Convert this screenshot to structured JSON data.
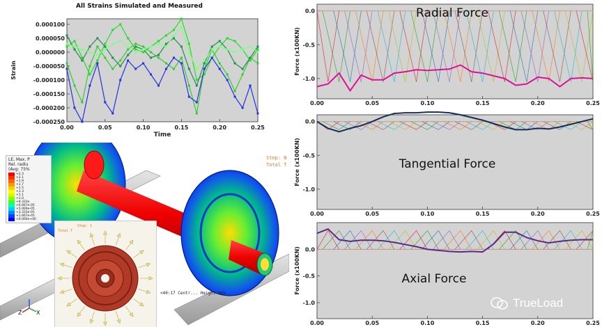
{
  "chart_data": [
    {
      "type": "line",
      "title": "All Strains Simulated and Measured",
      "xlabel": "Time",
      "ylabel": "Strain",
      "xlim": [
        0,
        0.25
      ],
      "ylim": [
        -0.00025,
        0.00012
      ],
      "xticks": [
        "0.00",
        "0.05",
        "0.10",
        "0.15",
        "0.20",
        "0.25"
      ],
      "yticks": [
        "0.000100",
        "0.000050",
        "0.000000",
        "-0.000050",
        "-0.000100",
        "-0.000150",
        "-0.000200",
        "-0.000250"
      ],
      "grid": false,
      "series": [
        {
          "color": "#22dd22",
          "x": [
            0,
            0.01,
            0.02,
            0.03,
            0.04,
            0.05,
            0.06,
            0.07,
            0.08,
            0.09,
            0.1,
            0.11,
            0.12,
            0.13,
            0.14,
            0.15,
            0.16,
            0.17,
            0.18,
            0.19,
            0.2,
            0.21,
            0.22,
            0.23,
            0.24,
            0.25
          ],
          "values": [
            2e-05,
            4e-05,
            -2e-05,
            -8e-05,
            -3e-05,
            3e-05,
            8e-05,
            0.0001,
            5e-05,
            1e-05,
            0.0,
            2e-05,
            4e-05,
            6e-05,
            8e-05,
            0.00012,
            3e-05,
            -0.0001,
            -8e-05,
            -2e-05,
            2e-05,
            5e-05,
            4e-05,
            1e-05,
            -3e-05,
            1e-05
          ]
        },
        {
          "color": "#33cc33",
          "x": [
            0,
            0.01,
            0.02,
            0.03,
            0.04,
            0.05,
            0.06,
            0.07,
            0.08,
            0.09,
            0.1,
            0.11,
            0.12,
            0.13,
            0.14,
            0.15,
            0.16,
            0.17,
            0.18,
            0.19,
            0.2,
            0.21,
            0.22,
            0.23,
            0.24,
            0.25
          ],
          "values": [
            -4e-05,
            -0.00012,
            -0.00018,
            -5e-05,
            2e-05,
            -2e-05,
            -6e-05,
            -3e-05,
            1e-05,
            3e-05,
            2e-05,
            0.0,
            -2e-05,
            -4e-05,
            -6e-05,
            -2e-05,
            -0.00012,
            -0.00022,
            -6e-05,
            1e-05,
            -4e-05,
            -8e-05,
            -0.00014,
            -8e-05,
            -2e-05,
            -4e-05
          ]
        },
        {
          "color": "#2233dd",
          "x": [
            0,
            0.01,
            0.02,
            0.03,
            0.04,
            0.05,
            0.06,
            0.07,
            0.08,
            0.09,
            0.1,
            0.11,
            0.12,
            0.13,
            0.14,
            0.15,
            0.16,
            0.17,
            0.18,
            0.19,
            0.2,
            0.21,
            0.22,
            0.23,
            0.24,
            0.25
          ],
          "values": [
            -6e-05,
            -0.0002,
            -0.00025,
            -0.00012,
            -4e-05,
            -0.00018,
            -0.00022,
            -0.0001,
            -3e-05,
            -6e-05,
            -4e-05,
            -8e-05,
            -0.00012,
            -6e-05,
            -2e-05,
            -4e-05,
            -0.00016,
            -0.00018,
            -6e-05,
            -2e-05,
            -6e-05,
            -0.0001,
            -0.00016,
            -0.0002,
            -0.00012,
            -0.00022
          ]
        },
        {
          "color": "#1f8f4a",
          "x": [
            0,
            0.01,
            0.02,
            0.03,
            0.04,
            0.05,
            0.06,
            0.07,
            0.08,
            0.09,
            0.1,
            0.11,
            0.12,
            0.13,
            0.14,
            0.15,
            0.16,
            0.17,
            0.18,
            0.19,
            0.2,
            0.21,
            0.22,
            0.23,
            0.24,
            0.25
          ],
          "values": [
            6e-05,
            1e-05,
            -3e-05,
            2e-05,
            5e-05,
            2e-05,
            -2e-05,
            -5e-05,
            -1e-05,
            2e-05,
            1e-05,
            -2e-05,
            -1e-05,
            3e-05,
            5e-05,
            2e-05,
            -6e-05,
            -0.00012,
            -4e-05,
            2e-05,
            4e-05,
            1e-05,
            -4e-05,
            -6e-05,
            -2e-05,
            2e-05
          ]
        },
        {
          "color": "#7fff7f",
          "x": [
            0,
            0.01,
            0.02,
            0.03,
            0.04,
            0.05,
            0.06,
            0.07,
            0.08,
            0.09,
            0.1,
            0.11,
            0.12,
            0.13,
            0.14,
            0.15,
            0.16,
            0.17,
            0.18,
            0.19,
            0.2,
            0.21,
            0.22,
            0.23,
            0.24,
            0.25
          ],
          "values": [
            3e-05,
            2e-05,
            1e-05,
            0.0,
            -1e-05,
            1e-05,
            3e-05,
            4e-05,
            2e-05,
            0.0,
            1e-05,
            2e-05,
            3e-05,
            2e-05,
            6e-05,
            9e-05,
            0.0,
            -6e-05,
            -3e-05,
            1e-05,
            2e-05,
            1e-05,
            0.0,
            1e-05,
            2e-05,
            0.0
          ]
        }
      ]
    },
    {
      "type": "line",
      "title": "Radial Force",
      "xlabel": "",
      "ylabel": "Force (x100KN)",
      "xlim": [
        0,
        0.25
      ],
      "ylim": [
        -1.3,
        0.1
      ],
      "xticks": [
        "0.00",
        "0.05",
        "0.10",
        "0.15",
        "0.20",
        "0.25"
      ],
      "yticks": [
        "0.0",
        "-0.5",
        "-1.0"
      ],
      "series": [
        {
          "color": "#dd1199",
          "x": [
            0,
            0.01,
            0.02,
            0.03,
            0.04,
            0.05,
            0.06,
            0.07,
            0.08,
            0.09,
            0.1,
            0.11,
            0.12,
            0.13,
            0.14,
            0.15,
            0.16,
            0.17,
            0.18,
            0.19,
            0.2,
            0.21,
            0.22,
            0.23,
            0.24,
            0.25
          ],
          "values": [
            -1.12,
            -1.08,
            -0.92,
            -1.18,
            -0.95,
            -1.02,
            -1.02,
            -0.92,
            -0.9,
            -0.87,
            -0.88,
            -0.87,
            -0.86,
            -0.8,
            -0.9,
            -0.92,
            -0.96,
            -1.0,
            -1.1,
            -1.08,
            -0.98,
            -1.0,
            -1.12,
            -1.0,
            -0.99,
            -1.0
          ]
        }
      ],
      "overlay_color_cycle": [
        "#d62728",
        "#2ca02c",
        "#1f77b4",
        "#9467bd",
        "#ff7f0e",
        "#8c564b",
        "#17becf",
        "#bcbd22"
      ]
    },
    {
      "type": "line",
      "title": "Tangential Force",
      "xlabel": "",
      "ylabel": "Force (x100KN)",
      "xlim": [
        0,
        0.25
      ],
      "ylim": [
        -1.3,
        0.1
      ],
      "xticks": [
        "0.00",
        "0.05",
        "0.10",
        "0.15",
        "0.20",
        "0.25"
      ],
      "yticks": [
        "0.0",
        "-0.5",
        "-1.0"
      ],
      "series": [
        {
          "color": "#152d5a",
          "x": [
            0,
            0.01,
            0.02,
            0.03,
            0.04,
            0.05,
            0.06,
            0.07,
            0.08,
            0.09,
            0.1,
            0.11,
            0.12,
            0.13,
            0.14,
            0.15,
            0.16,
            0.17,
            0.18,
            0.19,
            0.2,
            0.21,
            0.22,
            0.23,
            0.24,
            0.25
          ],
          "values": [
            0.0,
            -0.1,
            -0.15,
            -0.1,
            -0.06,
            0.0,
            0.07,
            0.12,
            0.13,
            0.13,
            0.14,
            0.14,
            0.13,
            0.1,
            0.06,
            0.02,
            -0.03,
            -0.08,
            -0.12,
            -0.12,
            -0.1,
            -0.11,
            -0.08,
            -0.04,
            0.0,
            0.04
          ]
        }
      ],
      "overlay_color_cycle": [
        "#d62728",
        "#2ca02c",
        "#1f77b4",
        "#9467bd",
        "#ff7f0e",
        "#8c564b",
        "#17becf",
        "#bcbd22"
      ]
    },
    {
      "type": "line",
      "title": "Axial Force",
      "xlabel": "",
      "ylabel": "Force (x100KN)",
      "xlim": [
        0,
        0.25
      ],
      "ylim": [
        -1.3,
        0.5
      ],
      "xticks": [
        "0.00",
        "0.05",
        "0.10",
        "0.15",
        "0.20",
        "0.25"
      ],
      "yticks": [
        "0.0",
        "-0.5",
        "-1.0"
      ],
      "series": [
        {
          "color": "#5b2a86",
          "x": [
            0,
            0.01,
            0.02,
            0.03,
            0.04,
            0.05,
            0.06,
            0.07,
            0.08,
            0.09,
            0.1,
            0.11,
            0.12,
            0.13,
            0.14,
            0.15,
            0.16,
            0.17,
            0.18,
            0.19,
            0.2,
            0.21,
            0.22,
            0.23,
            0.24,
            0.25
          ],
          "values": [
            0.3,
            0.38,
            0.18,
            0.15,
            0.17,
            0.17,
            0.16,
            0.13,
            0.09,
            0.05,
            0.0,
            -0.02,
            -0.04,
            -0.05,
            -0.04,
            -0.05,
            0.1,
            0.32,
            0.32,
            0.22,
            0.16,
            0.12,
            0.15,
            0.17,
            0.18,
            0.18
          ]
        }
      ],
      "overlay_color_cycle": [
        "#d62728",
        "#2ca02c",
        "#1f77b4",
        "#9467bd",
        "#ff7f0e",
        "#8c564b",
        "#17becf",
        "#bcbd22"
      ]
    }
  ],
  "fea": {
    "legend_title": "LE, Max. P",
    "legend_sub": "Rel. radiu",
    "legend_avg": "(Avg: 75%",
    "legend_values": [
      "+2.3",
      "+2.1",
      "+1.9",
      "+1.7",
      "+1.5",
      "+1.3",
      "+1.1",
      "+1.0",
      "+8.333e",
      "+6.667e-05",
      "+5.000e-05",
      "+3.333e-05",
      "+1.667e-05",
      "+0.000e+00"
    ],
    "legend_colors": [
      "#ff0000",
      "#ff3300",
      "#ff6600",
      "#ff9900",
      "#ffcc00",
      "#ffff00",
      "#ccff00",
      "#88ff00",
      "#33ff33",
      "#00ffaa",
      "#00ccff",
      "#0088ff",
      "#0044ff",
      "#0000ff"
    ],
    "step_label": "Step: N",
    "total_label": "Total T",
    "inset_step": "Step: 1",
    "inset_total": "Total T",
    "timestamp": "<40:17 Centr... Height 96%",
    "triad_label": "Z",
    "triad_label_x": "X"
  },
  "watermark": {
    "text": "TrueLoad"
  }
}
